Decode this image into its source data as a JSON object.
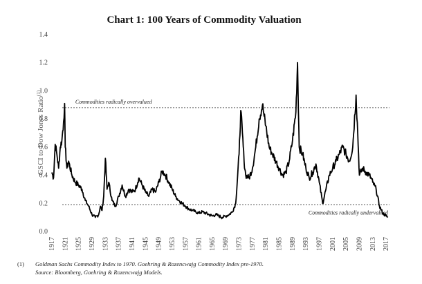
{
  "chart_data": {
    "type": "line",
    "title": "Chart 1: 100 Years of Commodity Valuation",
    "ylabel": "GSCI to Dow Jones Ratio",
    "ylabel_superscript": "(1)",
    "ylim": [
      0.0,
      1.4
    ],
    "xlim": [
      1917,
      2018
    ],
    "yticks": [
      "0.0",
      "0.2",
      "0.4",
      "0.6",
      "0.8",
      "1.0",
      "1.2",
      "1.4"
    ],
    "xticks": [
      "1917",
      "1921",
      "1925",
      "1929",
      "1933",
      "1937",
      "1941",
      "1945",
      "1949",
      "1953",
      "1957",
      "1961",
      "1965",
      "1969",
      "1973",
      "1977",
      "1981",
      "1985",
      "1989",
      "1993",
      "1997",
      "2001",
      "2005",
      "2009",
      "2013",
      "2017"
    ],
    "grid": false,
    "legend": "none",
    "line_color": "#000000",
    "reference_lines": [
      {
        "y": 0.88,
        "label": "Commodities radically overvalued"
      },
      {
        "y": 0.19,
        "label": "Commodities radically undervalued"
      }
    ],
    "series": [
      {
        "x": [
          1917,
          1917.5,
          1918,
          1918.5,
          1919,
          1919.5,
          1920,
          1920.5,
          1920.8,
          1921,
          1921.5,
          1922,
          1923,
          1924,
          1925,
          1926,
          1927,
          1928,
          1929,
          1930,
          1931,
          1931.5,
          1932,
          1932.5,
          1933,
          1933.5,
          1934,
          1935,
          1936,
          1937,
          1938,
          1939,
          1940,
          1941,
          1942,
          1943,
          1944,
          1945,
          1946,
          1947,
          1948,
          1949,
          1950,
          1951,
          1952,
          1953,
          1954,
          1955,
          1956,
          1957,
          1958,
          1959,
          1960,
          1961,
          1962,
          1963,
          1964,
          1965,
          1966,
          1967,
          1968,
          1969,
          1970,
          1971,
          1972,
          1973,
          1973.5,
          1974,
          1974.5,
          1975,
          1976,
          1977,
          1978,
          1979,
          1980,
          1980.5,
          1981,
          1982,
          1983,
          1984,
          1985,
          1986,
          1987,
          1988,
          1989,
          1990,
          1990.5,
          1991,
          1992,
          1993,
          1994,
          1995,
          1996,
          1997,
          1998,
          1999,
          2000,
          2001,
          2002,
          2003,
          2004,
          2005,
          2006,
          2007,
          2008,
          2008.5,
          2009,
          2010,
          2011,
          2012,
          2013,
          2014,
          2015,
          2016,
          2017,
          2017.5
        ],
        "y": [
          0.42,
          0.38,
          0.62,
          0.55,
          0.45,
          0.6,
          0.65,
          0.78,
          0.91,
          0.6,
          0.45,
          0.5,
          0.4,
          0.35,
          0.33,
          0.3,
          0.22,
          0.18,
          0.12,
          0.1,
          0.12,
          0.18,
          0.15,
          0.25,
          0.52,
          0.3,
          0.35,
          0.22,
          0.18,
          0.25,
          0.33,
          0.25,
          0.3,
          0.28,
          0.3,
          0.38,
          0.33,
          0.28,
          0.25,
          0.3,
          0.28,
          0.35,
          0.43,
          0.4,
          0.35,
          0.3,
          0.25,
          0.22,
          0.2,
          0.18,
          0.16,
          0.15,
          0.14,
          0.13,
          0.14,
          0.13,
          0.12,
          0.11,
          0.12,
          0.11,
          0.1,
          0.11,
          0.12,
          0.14,
          0.2,
          0.55,
          0.86,
          0.7,
          0.5,
          0.4,
          0.38,
          0.45,
          0.6,
          0.8,
          0.9,
          0.82,
          0.75,
          0.6,
          0.55,
          0.5,
          0.45,
          0.4,
          0.42,
          0.5,
          0.65,
          0.85,
          1.2,
          0.6,
          0.55,
          0.45,
          0.38,
          0.42,
          0.48,
          0.35,
          0.2,
          0.3,
          0.4,
          0.45,
          0.5,
          0.55,
          0.6,
          0.55,
          0.5,
          0.6,
          0.97,
          0.7,
          0.4,
          0.45,
          0.42,
          0.4,
          0.35,
          0.3,
          0.18,
          0.13,
          0.11,
          0.1
        ]
      }
    ]
  },
  "footnotes": {
    "number": "(1)",
    "line1": "Goldman Sachs Commodity Index to 1970.  Goehring & Rozencwajg Commodity Index pre-1970.",
    "line2": "Source: Bloomberg, Goehring & Rozencwajg Models."
  }
}
